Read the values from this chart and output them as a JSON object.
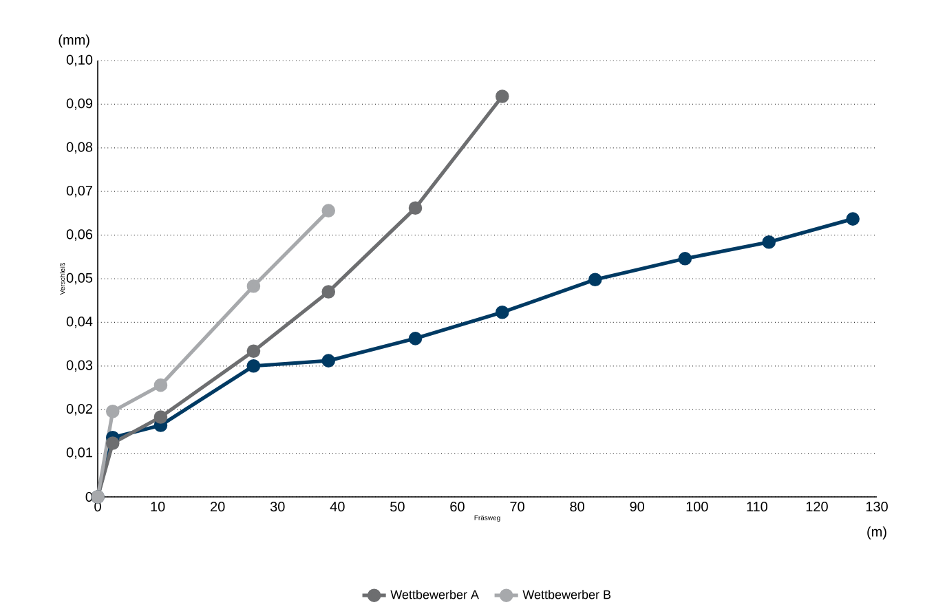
{
  "chart_data": {
    "type": "line",
    "xlabel": "Fräsweg",
    "ylabel": "Verschleiß",
    "annotations": [
      "(mm)",
      "(m)"
    ],
    "xlim": [
      0,
      130
    ],
    "xticks": [
      0,
      10,
      20,
      30,
      40,
      50,
      60,
      70,
      80,
      90,
      100,
      110,
      120,
      130
    ],
    "ylim": [
      0,
      0.1
    ],
    "yticks": [
      0,
      {
        "value": 0.01,
        "label": "0,01"
      },
      {
        "value": 0.02,
        "label": "0,02"
      },
      {
        "value": 0.03,
        "label": "0,03"
      },
      {
        "value": 0.04,
        "label": "0,04"
      },
      {
        "value": 0.05,
        "label": "0,05"
      },
      {
        "value": 0.06,
        "label": "0,06"
      },
      {
        "value": 0.07,
        "label": "0,07"
      },
      {
        "value": 0.08,
        "label": "0,08"
      },
      {
        "value": 0.09,
        "label": "0,09"
      },
      {
        "value": 0.1,
        "label": "0,10"
      }
    ],
    "grid": "y",
    "legend": "bottom",
    "marker": "circle",
    "line_style": "solid",
    "series": [
      {
        "color": "#003a63",
        "x": [
          0,
          2.5,
          10.5,
          26,
          38.5,
          53,
          67.5,
          83,
          98,
          112,
          126
        ],
        "values": [
          0,
          0.0136,
          0.0164,
          0.03,
          0.0312,
          0.0363,
          0.0423,
          0.0498,
          0.0546,
          0.0584,
          0.0637
        ]
      },
      {
        "name": "Wettbewerber A",
        "color": "#6d6e70",
        "x": [
          0,
          2.5,
          10.5,
          26,
          38.5,
          53,
          67.5
        ],
        "values": [
          0,
          0.0123,
          0.0183,
          0.0334,
          0.047,
          0.0662,
          0.0918
        ]
      },
      {
        "name": "Wettbewerber B",
        "color": "#a7a9ac",
        "x": [
          0,
          2.5,
          10.5,
          26,
          38.5
        ],
        "values": [
          0,
          0.0196,
          0.0256,
          0.0483,
          0.0656
        ]
      }
    ]
  }
}
